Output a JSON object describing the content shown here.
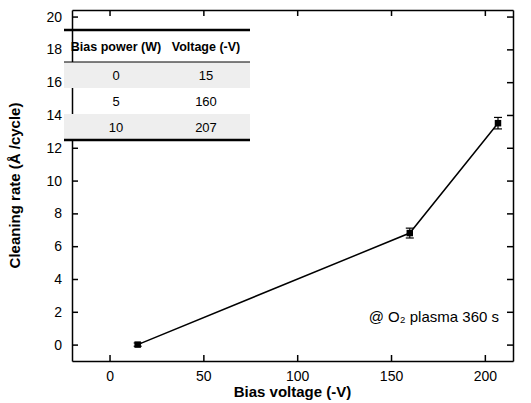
{
  "chart_data": {
    "type": "line",
    "x_label": "Bias voltage (-V)",
    "y_label": "Cleaning rate (Å /cycle)",
    "annotation": "@ O₂ plasma 360 s",
    "x": [
      15,
      160,
      207
    ],
    "series": [
      {
        "name": "Cleaning rate",
        "color": "#000000",
        "marker": "square",
        "line_style": "solid",
        "values": [
          0,
          6.8,
          13.5
        ],
        "errors": [
          0.1,
          0.3,
          0.35
        ]
      }
    ],
    "xlim": [
      -20,
      215
    ],
    "xticks": [
      0,
      50,
      100,
      150,
      200
    ],
    "ylim": [
      -1,
      20.4
    ],
    "yticks": [
      0,
      2,
      4,
      6,
      8,
      10,
      12,
      14,
      16,
      18,
      20
    ],
    "table": {
      "columns": [
        "Bias power (W)",
        "Voltage (-V)"
      ],
      "rows": [
        [
          0,
          15
        ],
        [
          5,
          160
        ],
        [
          10,
          207
        ]
      ]
    }
  }
}
